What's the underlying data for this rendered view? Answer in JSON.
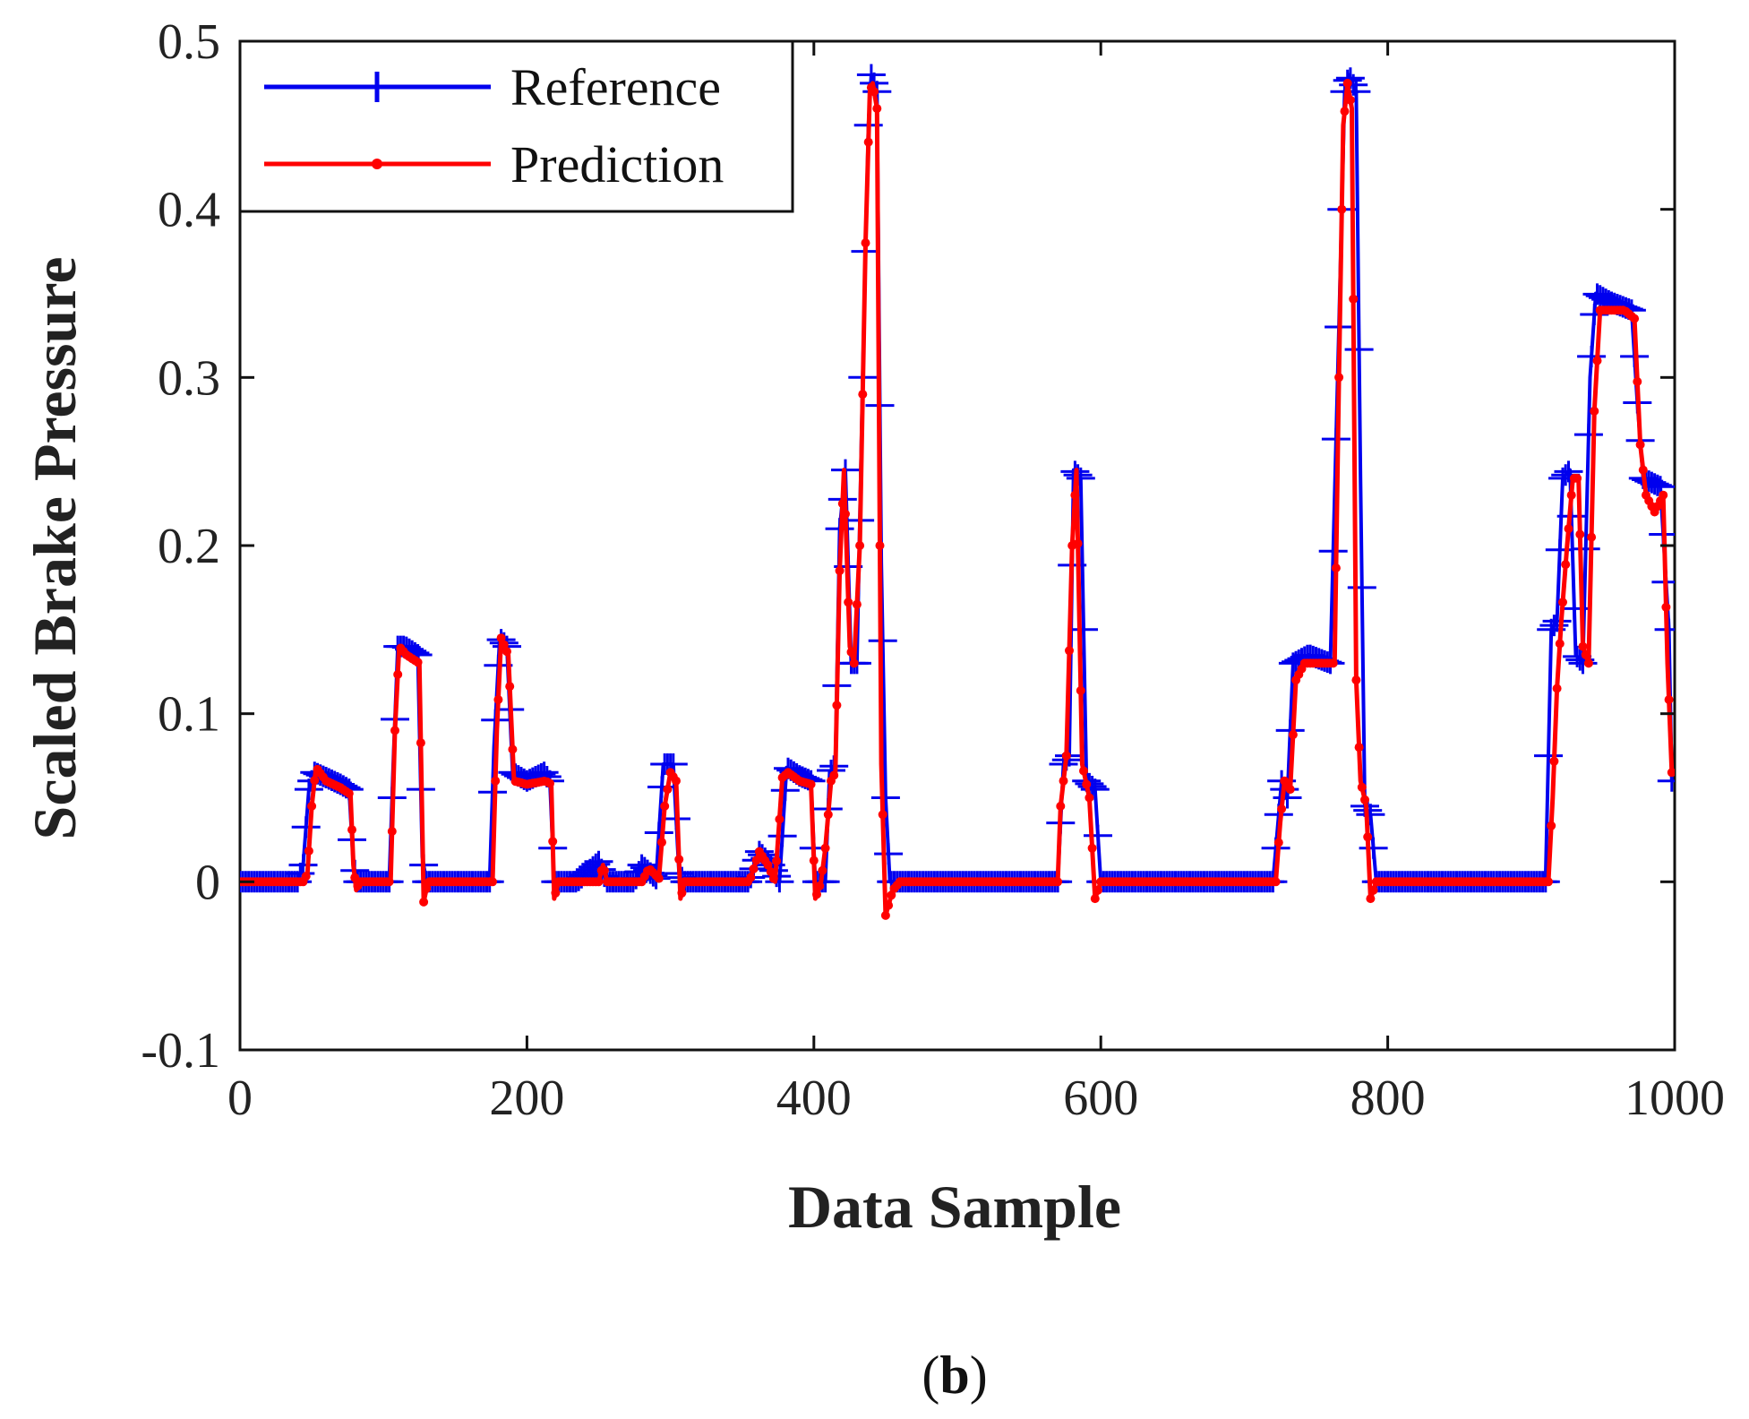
{
  "chart_data": {
    "type": "line",
    "title": "",
    "xlabel": "Data Sample",
    "ylabel": "Scaled Brake Pressure",
    "panel_label": "b",
    "xlim": [
      0,
      1000
    ],
    "ylim": [
      -0.1,
      0.5
    ],
    "xticks": [
      0,
      200,
      400,
      600,
      800,
      1000
    ],
    "xtick_labels": [
      "0",
      "200",
      "400",
      "600",
      "800",
      "1000"
    ],
    "yticks": [
      -0.1,
      0,
      0.1,
      0.2,
      0.3,
      0.4,
      0.5
    ],
    "ytick_labels": [
      "-0.1",
      "0",
      "0.1",
      "0.2",
      "0.3",
      "0.4",
      "0.5"
    ],
    "legend_position": "top-left",
    "grid": false,
    "series": [
      {
        "name": "Reference",
        "color": "#0000ee",
        "marker": "plus",
        "points": [
          [
            0,
            0
          ],
          [
            40,
            0
          ],
          [
            44,
            0.01
          ],
          [
            48,
            0.055
          ],
          [
            52,
            0.065
          ],
          [
            60,
            0.062
          ],
          [
            70,
            0.058
          ],
          [
            76,
            0.055
          ],
          [
            79,
            0.01
          ],
          [
            82,
            0
          ],
          [
            104,
            0
          ],
          [
            107,
            0.075
          ],
          [
            110,
            0.14
          ],
          [
            115,
            0.14
          ],
          [
            124,
            0.135
          ],
          [
            127,
            0.015
          ],
          [
            130,
            0
          ],
          [
            174,
            0
          ],
          [
            177,
            0.08
          ],
          [
            181,
            0.145
          ],
          [
            186,
            0.14
          ],
          [
            190,
            0.065
          ],
          [
            200,
            0.06
          ],
          [
            212,
            0.065
          ],
          [
            216,
            0.06
          ],
          [
            219,
            0
          ],
          [
            235,
            0
          ],
          [
            250,
            0.012
          ],
          [
            253,
            0.005
          ],
          [
            256,
            0
          ],
          [
            275,
            0
          ],
          [
            280,
            0.01
          ],
          [
            290,
            0.002
          ],
          [
            295,
            0.07
          ],
          [
            302,
            0.07
          ],
          [
            306,
            0.005
          ],
          [
            310,
            0
          ],
          [
            355,
            0
          ],
          [
            362,
            0.018
          ],
          [
            370,
            0.01
          ],
          [
            376,
            0
          ],
          [
            381,
            0.068
          ],
          [
            390,
            0.063
          ],
          [
            398,
            0.06
          ],
          [
            401,
            0
          ],
          [
            408,
            0
          ],
          [
            411,
            0.065
          ],
          [
            415,
            0.07
          ],
          [
            418,
            0.21
          ],
          [
            422,
            0.245
          ],
          [
            426,
            0.13
          ],
          [
            430,
            0.13
          ],
          [
            434,
            0.3
          ],
          [
            438,
            0.45
          ],
          [
            440,
            0.48
          ],
          [
            444,
            0.47
          ],
          [
            447,
            0.19
          ],
          [
            450,
            0.05
          ],
          [
            453,
            0
          ],
          [
            570,
            0
          ],
          [
            574,
            0.07
          ],
          [
            578,
            0.075
          ],
          [
            581,
            0.245
          ],
          [
            586,
            0.24
          ],
          [
            590,
            0.06
          ],
          [
            596,
            0.055
          ],
          [
            600,
            0
          ],
          [
            720,
            0
          ],
          [
            726,
            0.06
          ],
          [
            730,
            0.05
          ],
          [
            734,
            0.13
          ],
          [
            745,
            0.135
          ],
          [
            760,
            0.13
          ],
          [
            766,
            0.33
          ],
          [
            770,
            0.47
          ],
          [
            773,
            0.48
          ],
          [
            778,
            0.47
          ],
          [
            781,
            0.24
          ],
          [
            784,
            0.045
          ],
          [
            788,
            0.04
          ],
          [
            792,
            0
          ],
          [
            910,
            0
          ],
          [
            914,
            0.15
          ],
          [
            918,
            0.155
          ],
          [
            922,
            0.24
          ],
          [
            927,
            0.245
          ],
          [
            931,
            0.135
          ],
          [
            936,
            0.13
          ],
          [
            941,
            0.3
          ],
          [
            945,
            0.35
          ],
          [
            955,
            0.345
          ],
          [
            970,
            0.34
          ],
          [
            974,
            0.285
          ],
          [
            978,
            0.24
          ],
          [
            990,
            0.235
          ],
          [
            996,
            0.15
          ],
          [
            998,
            0.06
          ]
        ]
      },
      {
        "name": "Prediction",
        "color": "#ff0000",
        "marker": "dot",
        "points": [
          [
            0,
            0
          ],
          [
            44,
            0
          ],
          [
            47,
            0.005
          ],
          [
            50,
            0.045
          ],
          [
            53,
            0.068
          ],
          [
            60,
            0.06
          ],
          [
            70,
            0.056
          ],
          [
            77,
            0.052
          ],
          [
            79,
            0.01
          ],
          [
            81,
            -0.005
          ],
          [
            83,
            0
          ],
          [
            105,
            0
          ],
          [
            108,
            0.09
          ],
          [
            111,
            0.14
          ],
          [
            116,
            0.135
          ],
          [
            125,
            0.13
          ],
          [
            128,
            -0.012
          ],
          [
            131,
            0
          ],
          [
            176,
            0
          ],
          [
            179,
            0.09
          ],
          [
            182,
            0.145
          ],
          [
            187,
            0.135
          ],
          [
            191,
            0.06
          ],
          [
            200,
            0.058
          ],
          [
            213,
            0.06
          ],
          [
            217,
            0.058
          ],
          [
            219,
            -0.01
          ],
          [
            222,
            0
          ],
          [
            250,
            0
          ],
          [
            253,
            0.01
          ],
          [
            256,
            0
          ],
          [
            280,
            0
          ],
          [
            285,
            0.008
          ],
          [
            292,
            0.002
          ],
          [
            296,
            0.045
          ],
          [
            300,
            0.065
          ],
          [
            304,
            0.06
          ],
          [
            307,
            -0.01
          ],
          [
            310,
            0
          ],
          [
            355,
            0
          ],
          [
            362,
            0.018
          ],
          [
            368,
            0.01
          ],
          [
            373,
            0
          ],
          [
            378,
            0.062
          ],
          [
            382,
            0.065
          ],
          [
            390,
            0.06
          ],
          [
            398,
            0.058
          ],
          [
            401,
            -0.01
          ],
          [
            405,
            0
          ],
          [
            408,
            0.02
          ],
          [
            412,
            0.06
          ],
          [
            415,
            0.065
          ],
          [
            418,
            0.185
          ],
          [
            421,
            0.245
          ],
          [
            425,
            0.14
          ],
          [
            428,
            0.13
          ],
          [
            432,
            0.2
          ],
          [
            436,
            0.38
          ],
          [
            439,
            0.47
          ],
          [
            441,
            0.475
          ],
          [
            444,
            0.46
          ],
          [
            447,
            0.07
          ],
          [
            450,
            -0.02
          ],
          [
            455,
            -0.005
          ],
          [
            460,
            0
          ],
          [
            570,
            0
          ],
          [
            572,
            0.045
          ],
          [
            576,
            0.075
          ],
          [
            580,
            0.2
          ],
          [
            583,
            0.245
          ],
          [
            587,
            0.07
          ],
          [
            592,
            0.05
          ],
          [
            596,
            -0.01
          ],
          [
            600,
            0
          ],
          [
            722,
            0
          ],
          [
            725,
            0.035
          ],
          [
            728,
            0.06
          ],
          [
            732,
            0.055
          ],
          [
            736,
            0.12
          ],
          [
            742,
            0.13
          ],
          [
            755,
            0.13
          ],
          [
            763,
            0.13
          ],
          [
            766,
            0.3
          ],
          [
            769,
            0.45
          ],
          [
            772,
            0.475
          ],
          [
            775,
            0.46
          ],
          [
            778,
            0.12
          ],
          [
            781,
            0.06
          ],
          [
            785,
            0.045
          ],
          [
            788,
            -0.01
          ],
          [
            792,
            0
          ],
          [
            912,
            0
          ],
          [
            915,
            0.05
          ],
          [
            918,
            0.115
          ],
          [
            921,
            0.155
          ],
          [
            925,
            0.2
          ],
          [
            929,
            0.24
          ],
          [
            933,
            0.24
          ],
          [
            936,
            0.14
          ],
          [
            940,
            0.13
          ],
          [
            944,
            0.28
          ],
          [
            948,
            0.34
          ],
          [
            955,
            0.34
          ],
          [
            965,
            0.34
          ],
          [
            972,
            0.335
          ],
          [
            976,
            0.26
          ],
          [
            980,
            0.23
          ],
          [
            986,
            0.22
          ],
          [
            992,
            0.23
          ],
          [
            995,
            0.13
          ],
          [
            998,
            0.065
          ]
        ]
      }
    ]
  }
}
